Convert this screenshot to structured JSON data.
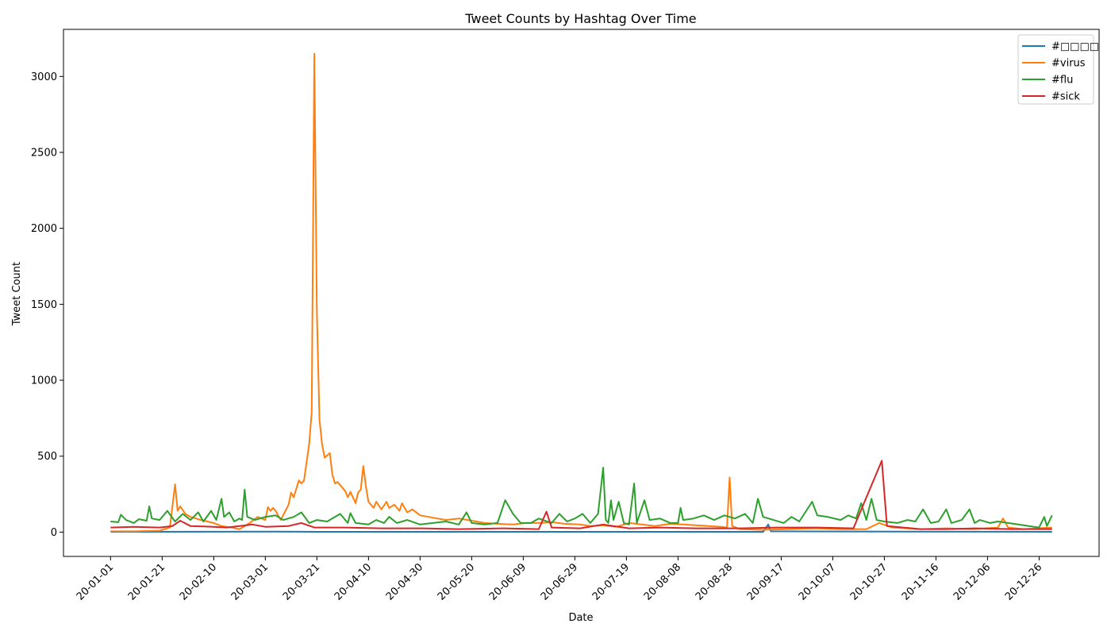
{
  "chart_data": {
    "type": "line",
    "title": "Tweet Counts by Hashtag Over Time",
    "xlabel": "Date",
    "ylabel": "Tweet Count",
    "x_start": "2020-01-01",
    "x_end": "2020-12-31",
    "x_ticks": [
      "20-01-01",
      "20-01-21",
      "20-02-10",
      "20-03-01",
      "20-03-21",
      "20-04-10",
      "20-04-30",
      "20-05-20",
      "20-06-09",
      "20-06-29",
      "20-07-19",
      "20-08-08",
      "20-08-28",
      "20-09-17",
      "20-10-07",
      "20-10-27",
      "20-11-16",
      "20-12-06",
      "20-12-26"
    ],
    "ylim": [
      -160,
      3310
    ],
    "y_ticks": [
      0,
      500,
      1000,
      1500,
      2000,
      2500,
      3000
    ],
    "grid": false,
    "legend_position": "top-right",
    "series": [
      {
        "name": "#□□□□",
        "color": "#1f77b4",
        "points": [
          [
            "2020-01-01",
            2
          ],
          [
            "2020-03-05",
            3
          ],
          [
            "2020-03-21",
            2
          ],
          [
            "2020-09-10",
            2
          ],
          [
            "2020-09-12",
            50
          ],
          [
            "2020-09-13",
            5
          ],
          [
            "2020-12-31",
            2
          ]
        ]
      },
      {
        "name": "#virus",
        "color": "#ff7f0e",
        "points": [
          [
            "2020-01-01",
            5
          ],
          [
            "2020-01-10",
            5
          ],
          [
            "2020-01-20",
            10
          ],
          [
            "2020-01-24",
            30
          ],
          [
            "2020-01-26",
            315
          ],
          [
            "2020-01-27",
            140
          ],
          [
            "2020-01-28",
            170
          ],
          [
            "2020-01-30",
            120
          ],
          [
            "2020-02-01",
            100
          ],
          [
            "2020-02-05",
            80
          ],
          [
            "2020-02-10",
            60
          ],
          [
            "2020-02-13",
            40
          ],
          [
            "2020-02-17",
            30
          ],
          [
            "2020-02-20",
            20
          ],
          [
            "2020-02-24",
            60
          ],
          [
            "2020-02-27",
            100
          ],
          [
            "2020-03-01",
            80
          ],
          [
            "2020-03-02",
            165
          ],
          [
            "2020-03-03",
            140
          ],
          [
            "2020-03-04",
            160
          ],
          [
            "2020-03-05",
            140
          ],
          [
            "2020-03-07",
            80
          ],
          [
            "2020-03-10",
            180
          ],
          [
            "2020-03-11",
            260
          ],
          [
            "2020-03-12",
            230
          ],
          [
            "2020-03-14",
            340
          ],
          [
            "2020-03-15",
            320
          ],
          [
            "2020-03-16",
            340
          ],
          [
            "2020-03-18",
            580
          ],
          [
            "2020-03-19",
            790
          ],
          [
            "2020-03-20",
            3150
          ],
          [
            "2020-03-21",
            1450
          ],
          [
            "2020-03-22",
            740
          ],
          [
            "2020-03-23",
            580
          ],
          [
            "2020-03-24",
            490
          ],
          [
            "2020-03-26",
            520
          ],
          [
            "2020-03-27",
            380
          ],
          [
            "2020-03-28",
            320
          ],
          [
            "2020-03-29",
            330
          ],
          [
            "2020-04-01",
            270
          ],
          [
            "2020-04-02",
            230
          ],
          [
            "2020-04-03",
            265
          ],
          [
            "2020-04-05",
            190
          ],
          [
            "2020-04-06",
            260
          ],
          [
            "2020-04-07",
            280
          ],
          [
            "2020-04-08",
            435
          ],
          [
            "2020-04-09",
            300
          ],
          [
            "2020-04-10",
            200
          ],
          [
            "2020-04-12",
            160
          ],
          [
            "2020-04-13",
            200
          ],
          [
            "2020-04-15",
            150
          ],
          [
            "2020-04-17",
            200
          ],
          [
            "2020-04-18",
            160
          ],
          [
            "2020-04-20",
            180
          ],
          [
            "2020-04-22",
            140
          ],
          [
            "2020-04-23",
            190
          ],
          [
            "2020-04-25",
            130
          ],
          [
            "2020-04-27",
            150
          ],
          [
            "2020-04-30",
            110
          ],
          [
            "2020-05-05",
            95
          ],
          [
            "2020-05-10",
            80
          ],
          [
            "2020-05-15",
            90
          ],
          [
            "2020-05-20",
            75
          ],
          [
            "2020-05-25",
            60
          ],
          [
            "2020-05-30",
            55
          ],
          [
            "2020-06-05",
            50
          ],
          [
            "2020-06-10",
            60
          ],
          [
            "2020-06-15",
            60
          ],
          [
            "2020-06-20",
            65
          ],
          [
            "2020-06-25",
            55
          ],
          [
            "2020-07-01",
            50
          ],
          [
            "2020-07-05",
            40
          ],
          [
            "2020-07-10",
            45
          ],
          [
            "2020-07-15",
            35
          ],
          [
            "2020-07-20",
            60
          ],
          [
            "2020-07-25",
            50
          ],
          [
            "2020-07-30",
            40
          ],
          [
            "2020-08-05",
            55
          ],
          [
            "2020-08-10",
            50
          ],
          [
            "2020-08-15",
            45
          ],
          [
            "2020-08-20",
            40
          ],
          [
            "2020-08-25",
            35
          ],
          [
            "2020-08-27",
            30
          ],
          [
            "2020-08-28",
            360
          ],
          [
            "2020-08-29",
            40
          ],
          [
            "2020-09-01",
            20
          ],
          [
            "2020-09-10",
            15
          ],
          [
            "2020-09-20",
            20
          ],
          [
            "2020-09-30",
            25
          ],
          [
            "2020-10-10",
            20
          ],
          [
            "2020-10-20",
            20
          ],
          [
            "2020-10-25",
            60
          ],
          [
            "2020-10-30",
            30
          ],
          [
            "2020-11-10",
            20
          ],
          [
            "2020-11-20",
            25
          ],
          [
            "2020-11-30",
            20
          ],
          [
            "2020-12-05",
            25
          ],
          [
            "2020-12-10",
            30
          ],
          [
            "2020-12-12",
            90
          ],
          [
            "2020-12-14",
            30
          ],
          [
            "2020-12-20",
            20
          ],
          [
            "2020-12-31",
            30
          ]
        ]
      },
      {
        "name": "#flu",
        "color": "#2ca02c",
        "points": [
          [
            "2020-01-01",
            70
          ],
          [
            "2020-01-04",
            65
          ],
          [
            "2020-01-05",
            115
          ],
          [
            "2020-01-07",
            80
          ],
          [
            "2020-01-10",
            60
          ],
          [
            "2020-01-12",
            85
          ],
          [
            "2020-01-15",
            75
          ],
          [
            "2020-01-16",
            170
          ],
          [
            "2020-01-17",
            90
          ],
          [
            "2020-01-20",
            80
          ],
          [
            "2020-01-23",
            140
          ],
          [
            "2020-01-26",
            70
          ],
          [
            "2020-01-29",
            120
          ],
          [
            "2020-02-01",
            80
          ],
          [
            "2020-02-04",
            130
          ],
          [
            "2020-02-06",
            70
          ],
          [
            "2020-02-09",
            140
          ],
          [
            "2020-02-11",
            80
          ],
          [
            "2020-02-13",
            220
          ],
          [
            "2020-02-14",
            100
          ],
          [
            "2020-02-16",
            130
          ],
          [
            "2020-02-18",
            70
          ],
          [
            "2020-02-20",
            90
          ],
          [
            "2020-02-21",
            80
          ],
          [
            "2020-02-22",
            280
          ],
          [
            "2020-02-23",
            100
          ],
          [
            "2020-02-26",
            80
          ],
          [
            "2020-03-01",
            100
          ],
          [
            "2020-03-05",
            110
          ],
          [
            "2020-03-08",
            80
          ],
          [
            "2020-03-12",
            100
          ],
          [
            "2020-03-15",
            130
          ],
          [
            "2020-03-18",
            60
          ],
          [
            "2020-03-21",
            80
          ],
          [
            "2020-03-25",
            70
          ],
          [
            "2020-03-30",
            120
          ],
          [
            "2020-04-02",
            60
          ],
          [
            "2020-04-03",
            125
          ],
          [
            "2020-04-05",
            60
          ],
          [
            "2020-04-10",
            50
          ],
          [
            "2020-04-13",
            80
          ],
          [
            "2020-04-16",
            60
          ],
          [
            "2020-04-18",
            100
          ],
          [
            "2020-04-21",
            60
          ],
          [
            "2020-04-25",
            80
          ],
          [
            "2020-04-30",
            50
          ],
          [
            "2020-05-05",
            60
          ],
          [
            "2020-05-10",
            70
          ],
          [
            "2020-05-15",
            50
          ],
          [
            "2020-05-18",
            130
          ],
          [
            "2020-05-20",
            60
          ],
          [
            "2020-05-25",
            50
          ],
          [
            "2020-05-30",
            60
          ],
          [
            "2020-06-02",
            210
          ],
          [
            "2020-06-03",
            180
          ],
          [
            "2020-06-05",
            120
          ],
          [
            "2020-06-08",
            60
          ],
          [
            "2020-06-12",
            60
          ],
          [
            "2020-06-15",
            90
          ],
          [
            "2020-06-20",
            60
          ],
          [
            "2020-06-23",
            120
          ],
          [
            "2020-06-26",
            70
          ],
          [
            "2020-06-29",
            90
          ],
          [
            "2020-07-02",
            120
          ],
          [
            "2020-07-05",
            60
          ],
          [
            "2020-07-08",
            120
          ],
          [
            "2020-07-10",
            425
          ],
          [
            "2020-07-11",
            80
          ],
          [
            "2020-07-12",
            60
          ],
          [
            "2020-07-13",
            210
          ],
          [
            "2020-07-14",
            80
          ],
          [
            "2020-07-16",
            200
          ],
          [
            "2020-07-18",
            60
          ],
          [
            "2020-07-20",
            50
          ],
          [
            "2020-07-22",
            320
          ],
          [
            "2020-07-23",
            60
          ],
          [
            "2020-07-26",
            210
          ],
          [
            "2020-07-28",
            80
          ],
          [
            "2020-08-01",
            90
          ],
          [
            "2020-08-05",
            60
          ],
          [
            "2020-08-08",
            60
          ],
          [
            "2020-08-09",
            160
          ],
          [
            "2020-08-10",
            80
          ],
          [
            "2020-08-14",
            90
          ],
          [
            "2020-08-18",
            110
          ],
          [
            "2020-08-22",
            80
          ],
          [
            "2020-08-26",
            110
          ],
          [
            "2020-08-30",
            90
          ],
          [
            "2020-09-03",
            120
          ],
          [
            "2020-09-06",
            60
          ],
          [
            "2020-09-08",
            220
          ],
          [
            "2020-09-10",
            100
          ],
          [
            "2020-09-14",
            80
          ],
          [
            "2020-09-18",
            60
          ],
          [
            "2020-09-21",
            100
          ],
          [
            "2020-09-24",
            70
          ],
          [
            "2020-09-29",
            200
          ],
          [
            "2020-10-01",
            110
          ],
          [
            "2020-10-05",
            100
          ],
          [
            "2020-10-10",
            80
          ],
          [
            "2020-10-13",
            110
          ],
          [
            "2020-10-16",
            90
          ],
          [
            "2020-10-18",
            190
          ],
          [
            "2020-10-20",
            80
          ],
          [
            "2020-10-22",
            220
          ],
          [
            "2020-10-24",
            80
          ],
          [
            "2020-10-27",
            70
          ],
          [
            "2020-11-01",
            60
          ],
          [
            "2020-11-05",
            80
          ],
          [
            "2020-11-08",
            70
          ],
          [
            "2020-11-11",
            150
          ],
          [
            "2020-11-14",
            60
          ],
          [
            "2020-11-17",
            70
          ],
          [
            "2020-11-20",
            150
          ],
          [
            "2020-11-22",
            60
          ],
          [
            "2020-11-26",
            80
          ],
          [
            "2020-11-29",
            150
          ],
          [
            "2020-12-01",
            60
          ],
          [
            "2020-12-03",
            80
          ],
          [
            "2020-12-07",
            60
          ],
          [
            "2020-12-10",
            70
          ],
          [
            "2020-12-14",
            60
          ],
          [
            "2020-12-18",
            50
          ],
          [
            "2020-12-22",
            40
          ],
          [
            "2020-12-26",
            30
          ],
          [
            "2020-12-28",
            100
          ],
          [
            "2020-12-29",
            40
          ],
          [
            "2020-12-31",
            110
          ]
        ]
      },
      {
        "name": "#sick",
        "color": "#d62728",
        "points": [
          [
            "2020-01-01",
            30
          ],
          [
            "2020-01-10",
            35
          ],
          [
            "2020-01-20",
            30
          ],
          [
            "2020-01-25",
            40
          ],
          [
            "2020-01-28",
            75
          ],
          [
            "2020-02-01",
            40
          ],
          [
            "2020-02-10",
            35
          ],
          [
            "2020-02-15",
            30
          ],
          [
            "2020-02-20",
            40
          ],
          [
            "2020-02-25",
            50
          ],
          [
            "2020-03-01",
            35
          ],
          [
            "2020-03-10",
            40
          ],
          [
            "2020-03-15",
            60
          ],
          [
            "2020-03-20",
            30
          ],
          [
            "2020-04-01",
            30
          ],
          [
            "2020-04-15",
            25
          ],
          [
            "2020-05-01",
            25
          ],
          [
            "2020-05-15",
            20
          ],
          [
            "2020-06-01",
            25
          ],
          [
            "2020-06-15",
            20
          ],
          [
            "2020-06-18",
            135
          ],
          [
            "2020-06-20",
            30
          ],
          [
            "2020-07-01",
            25
          ],
          [
            "2020-07-10",
            50
          ],
          [
            "2020-07-20",
            25
          ],
          [
            "2020-08-01",
            30
          ],
          [
            "2020-08-15",
            25
          ],
          [
            "2020-09-01",
            25
          ],
          [
            "2020-09-15",
            30
          ],
          [
            "2020-10-01",
            30
          ],
          [
            "2020-10-15",
            25
          ],
          [
            "2020-10-26",
            470
          ],
          [
            "2020-10-28",
            40
          ],
          [
            "2020-11-10",
            20
          ],
          [
            "2020-11-20",
            20
          ],
          [
            "2020-12-01",
            25
          ],
          [
            "2020-12-15",
            20
          ],
          [
            "2020-12-31",
            20
          ]
        ]
      }
    ]
  }
}
